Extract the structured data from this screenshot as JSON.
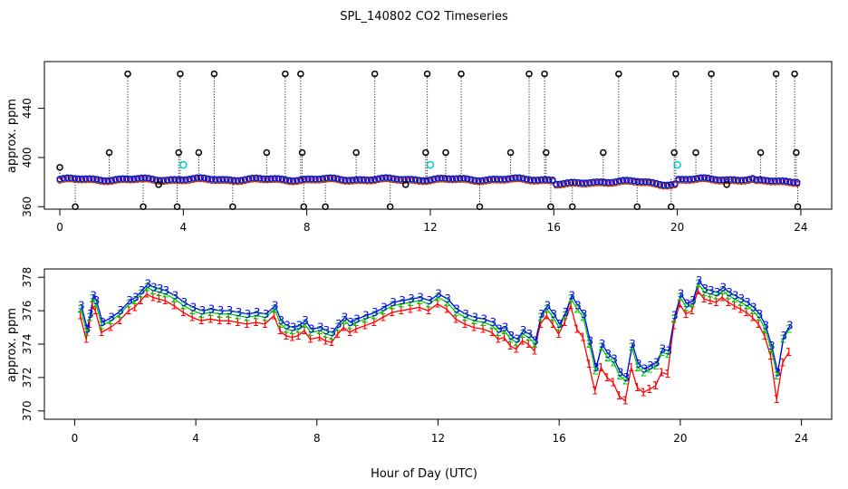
{
  "chart_data": {
    "title": "SPL_140802  CO2 Timeseries",
    "xlabel": "Hour of Day (UTC)",
    "panels": [
      {
        "id": "top",
        "type": "scatter",
        "ylabel": "approx. ppm",
        "xlim": [
          -0.5,
          25
        ],
        "ylim": [
          358,
          478
        ],
        "xticks": [
          0,
          4,
          8,
          12,
          16,
          20,
          24
        ],
        "yticks": [
          360,
          400,
          440
        ],
        "series": [
          {
            "name": "black-open-circles",
            "color": "#000000",
            "marker": "circle",
            "baseline": 382.5,
            "spikes": [
              {
                "x": 0.0,
                "y": 392
              },
              {
                "x": 0.5,
                "y": 360
              },
              {
                "x": 1.6,
                "y": 404
              },
              {
                "x": 2.2,
                "y": 468
              },
              {
                "x": 2.7,
                "y": 360
              },
              {
                "x": 3.2,
                "y": 378
              },
              {
                "x": 3.8,
                "y": 360
              },
              {
                "x": 3.85,
                "y": 404
              },
              {
                "x": 3.9,
                "y": 468
              },
              {
                "x": 4.5,
                "y": 404
              },
              {
                "x": 5.0,
                "y": 468
              },
              {
                "x": 5.6,
                "y": 360
              },
              {
                "x": 6.7,
                "y": 404
              },
              {
                "x": 7.3,
                "y": 468
              },
              {
                "x": 7.8,
                "y": 468
              },
              {
                "x": 7.85,
                "y": 404
              },
              {
                "x": 7.9,
                "y": 360
              },
              {
                "x": 8.6,
                "y": 360
              },
              {
                "x": 9.6,
                "y": 404
              },
              {
                "x": 10.2,
                "y": 468
              },
              {
                "x": 10.7,
                "y": 360
              },
              {
                "x": 11.2,
                "y": 378
              },
              {
                "x": 11.85,
                "y": 404
              },
              {
                "x": 11.9,
                "y": 468
              },
              {
                "x": 12.5,
                "y": 404
              },
              {
                "x": 13.0,
                "y": 468
              },
              {
                "x": 13.6,
                "y": 360
              },
              {
                "x": 14.6,
                "y": 404
              },
              {
                "x": 15.2,
                "y": 468
              },
              {
                "x": 15.7,
                "y": 468
              },
              {
                "x": 15.75,
                "y": 404
              },
              {
                "x": 15.9,
                "y": 360
              },
              {
                "x": 16.6,
                "y": 360
              },
              {
                "x": 17.6,
                "y": 404
              },
              {
                "x": 18.1,
                "y": 468
              },
              {
                "x": 18.7,
                "y": 360
              },
              {
                "x": 19.8,
                "y": 360
              },
              {
                "x": 19.9,
                "y": 404
              },
              {
                "x": 19.95,
                "y": 468
              },
              {
                "x": 20.6,
                "y": 404
              },
              {
                "x": 21.1,
                "y": 468
              },
              {
                "x": 21.6,
                "y": 378
              },
              {
                "x": 22.7,
                "y": 404
              },
              {
                "x": 23.2,
                "y": 468
              },
              {
                "x": 23.8,
                "y": 468
              },
              {
                "x": 23.85,
                "y": 404
              },
              {
                "x": 23.9,
                "y": 360
              }
            ]
          },
          {
            "name": "cyan-open-circles",
            "color": "#00cccc",
            "marker": "circle",
            "points": [
              {
                "x": 4.0,
                "y": 394
              },
              {
                "x": 12.0,
                "y": 394
              },
              {
                "x": 20.0,
                "y": 394
              }
            ]
          },
          {
            "name": "blue-red-green-baseline",
            "color": "#0000ff",
            "marker": "circle",
            "baseline": 382.5
          }
        ]
      },
      {
        "id": "bottom",
        "type": "line",
        "ylabel": "approx. ppm",
        "xlim": [
          -1,
          25
        ],
        "ylim": [
          369.5,
          378.5
        ],
        "xticks": [
          0,
          4,
          8,
          12,
          16,
          20,
          24
        ],
        "yticks": [
          370,
          372,
          374,
          376,
          378
        ],
        "series": [
          {
            "name": "1",
            "label": "1",
            "color": "#ff0000",
            "offset": -0.6
          },
          {
            "name": "2",
            "label": "2",
            "color": "#00cc00",
            "offset": -0.2
          },
          {
            "name": "3",
            "label": "3",
            "color": "#0000ff",
            "offset": 0.0
          }
        ],
        "x": [
          0.2,
          0.4,
          0.5,
          0.6,
          0.7,
          0.9,
          1.2,
          1.5,
          1.8,
          2.0,
          2.2,
          2.4,
          2.6,
          2.8,
          3.0,
          3.3,
          3.6,
          3.9,
          4.2,
          4.5,
          4.8,
          5.1,
          5.4,
          5.7,
          6.0,
          6.3,
          6.6,
          6.8,
          7.0,
          7.2,
          7.4,
          7.6,
          7.8,
          8.1,
          8.3,
          8.5,
          8.7,
          8.9,
          9.1,
          9.3,
          9.6,
          9.9,
          10.2,
          10.5,
          10.8,
          11.1,
          11.4,
          11.7,
          12.0,
          12.3,
          12.6,
          12.9,
          13.2,
          13.5,
          13.8,
          14.0,
          14.2,
          14.4,
          14.6,
          14.8,
          15.0,
          15.2,
          15.4,
          15.6,
          15.8,
          16.0,
          16.2,
          16.4,
          16.6,
          16.8,
          17.0,
          17.2,
          17.4,
          17.6,
          17.8,
          18.0,
          18.2,
          18.4,
          18.6,
          18.8,
          19.0,
          19.2,
          19.4,
          19.6,
          19.8,
          20.0,
          20.2,
          20.4,
          20.6,
          20.8,
          21.0,
          21.2,
          21.4,
          21.6,
          21.8,
          22.0,
          22.2,
          22.4,
          22.6,
          22.8,
          23.0,
          23.2,
          23.4,
          23.6
        ],
        "values": [
          376.3,
          374.9,
          375.8,
          376.9,
          376.6,
          375.3,
          375.6,
          376.0,
          376.6,
          376.8,
          377.2,
          377.6,
          377.4,
          377.3,
          377.2,
          376.9,
          376.5,
          376.2,
          376.0,
          376.1,
          376.0,
          376.0,
          375.9,
          375.8,
          375.9,
          375.8,
          376.3,
          375.4,
          375.1,
          375.0,
          375.1,
          375.4,
          374.9,
          375.0,
          374.8,
          374.7,
          375.2,
          375.6,
          375.3,
          375.5,
          375.7,
          375.9,
          376.2,
          376.5,
          376.6,
          376.7,
          376.8,
          376.6,
          377.0,
          376.7,
          376.1,
          375.8,
          375.6,
          375.5,
          375.3,
          374.9,
          375.0,
          374.5,
          374.3,
          374.8,
          374.6,
          374.2,
          375.8,
          376.3,
          375.8,
          375.2,
          375.9,
          376.9,
          376.3,
          375.8,
          374.2,
          372.6,
          374.0,
          373.4,
          373.1,
          372.3,
          372.0,
          374.0,
          372.8,
          372.5,
          372.7,
          372.9,
          373.7,
          373.6,
          375.7,
          377.0,
          376.4,
          376.6,
          377.8,
          377.3,
          377.2,
          377.1,
          377.4,
          377.1,
          376.9,
          376.7,
          376.5,
          376.2,
          375.8,
          375.1,
          373.9,
          372.3,
          374.5,
          375.1
        ]
      }
    ]
  }
}
